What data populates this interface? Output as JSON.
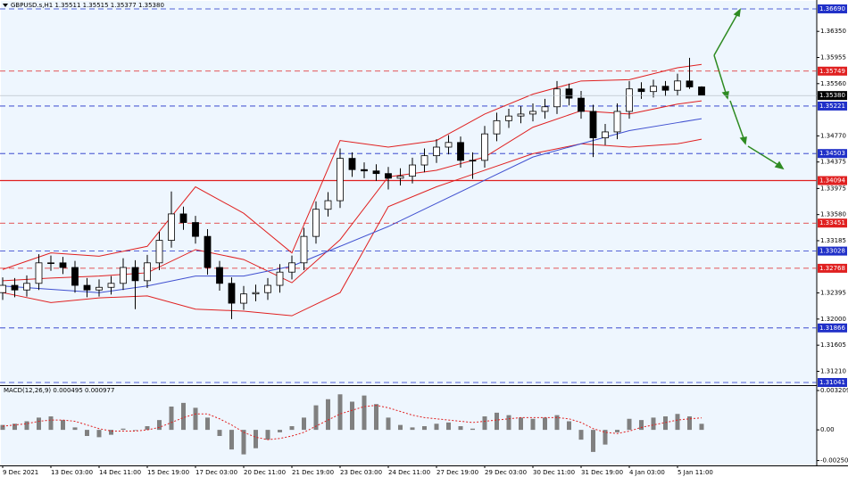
{
  "chart_data": {
    "type": "candlestick",
    "title": "GBPUSD.s,H1  1.35511 1.35515 1.35377 1.35380",
    "categories": [
      "9 Dec 2021",
      null,
      null,
      null,
      "13 Dec 03:00",
      null,
      null,
      null,
      "14 Dec 11:00",
      null,
      null,
      null,
      "15 Dec 19:00",
      null,
      null,
      null,
      "17 Dec 03:00",
      null,
      null,
      null,
      "20 Dec 11:00",
      null,
      null,
      null,
      "21 Dec 19:00",
      null,
      null,
      null,
      "23 Dec 03:00",
      null,
      null,
      null,
      "24 Dec 11:00",
      null,
      null,
      null,
      "27 Dec 19:00",
      null,
      null,
      null,
      "29 Dec 03:00",
      null,
      null,
      null,
      "30 Dec 11:00",
      null,
      null,
      null,
      "31 Dec 19:00",
      null,
      null,
      null,
      "4 Jan 03:00",
      null,
      null,
      null,
      "5 Jan 11:00",
      null,
      null
    ],
    "open": [
      1.324,
      1.3251,
      1.3244,
      1.3254,
      1.3285,
      1.3285,
      1.3278,
      1.3251,
      1.3244,
      1.3248,
      1.3254,
      1.3278,
      1.3258,
      1.3285,
      1.3319,
      1.3359,
      1.3346,
      1.3325,
      1.3278,
      1.3254,
      1.3224,
      1.3238,
      1.324,
      1.3251,
      1.3271,
      1.3285,
      1.3325,
      1.3366,
      1.3379,
      1.3443,
      1.3426,
      1.3424,
      1.342,
      1.3413,
      1.3416,
      1.3433,
      1.3447,
      1.346,
      1.3467,
      1.344,
      1.344,
      1.348,
      1.35,
      1.3507,
      1.351,
      1.3514,
      1.3521,
      1.3548,
      1.3534,
      1.3514,
      1.3474,
      1.3483,
      1.3514,
      1.3548,
      1.3544,
      1.3552,
      1.3546,
      1.356,
      1.3551
    ],
    "high": [
      1.3263,
      1.3262,
      1.3266,
      1.3298,
      1.3296,
      1.3294,
      1.3288,
      1.3262,
      1.326,
      1.3265,
      1.3292,
      1.3289,
      1.3297,
      1.3332,
      1.3393,
      1.337,
      1.3356,
      1.3336,
      1.3288,
      1.3263,
      1.325,
      1.3252,
      1.3262,
      1.3283,
      1.3296,
      1.3338,
      1.3378,
      1.3392,
      1.3458,
      1.3452,
      1.3437,
      1.3434,
      1.343,
      1.3428,
      1.3444,
      1.3458,
      1.3472,
      1.3478,
      1.3476,
      1.3452,
      1.3492,
      1.3512,
      1.3518,
      1.3522,
      1.3526,
      1.3533,
      1.356,
      1.3556,
      1.3545,
      1.3524,
      1.3495,
      1.3526,
      1.356,
      1.3558,
      1.3562,
      1.356,
      1.3571,
      1.3595,
      1.3552
    ],
    "low": [
      1.3229,
      1.3233,
      1.3234,
      1.3244,
      1.3273,
      1.3268,
      1.324,
      1.3233,
      1.3234,
      1.3237,
      1.3244,
      1.3215,
      1.3247,
      1.3274,
      1.3308,
      1.3335,
      1.3314,
      1.3267,
      1.3243,
      1.32,
      1.3214,
      1.3227,
      1.3229,
      1.324,
      1.326,
      1.3274,
      1.3314,
      1.3355,
      1.3368,
      1.3415,
      1.3413,
      1.3409,
      1.3396,
      1.3402,
      1.3405,
      1.3422,
      1.3436,
      1.3449,
      1.3429,
      1.3412,
      1.3429,
      1.3469,
      1.3489,
      1.3496,
      1.3499,
      1.3503,
      1.351,
      1.3523,
      1.3503,
      1.3445,
      1.3463,
      1.3472,
      1.3503,
      1.3533,
      1.3535,
      1.3537,
      1.3538,
      1.3548,
      1.3538
    ],
    "close": [
      1.3251,
      1.3244,
      1.3254,
      1.3285,
      1.3285,
      1.3278,
      1.3251,
      1.3244,
      1.3248,
      1.3254,
      1.3278,
      1.3258,
      1.3285,
      1.3319,
      1.3359,
      1.3346,
      1.3325,
      1.3278,
      1.3254,
      1.3224,
      1.3238,
      1.324,
      1.3251,
      1.3271,
      1.3285,
      1.3325,
      1.3366,
      1.3379,
      1.3443,
      1.3426,
      1.3424,
      1.342,
      1.3413,
      1.3416,
      1.3433,
      1.3447,
      1.346,
      1.3467,
      1.344,
      1.344,
      1.348,
      1.35,
      1.3507,
      1.351,
      1.3514,
      1.3521,
      1.3548,
      1.3534,
      1.3514,
      1.3474,
      1.3483,
      1.3514,
      1.3548,
      1.3544,
      1.3552,
      1.3546,
      1.356,
      1.3551,
      1.3538
    ],
    "ylim": [
      1.31014,
      1.36784
    ],
    "yticks": [
      {
        "value": 1.3635,
        "label": "1.36350"
      },
      {
        "value": 1.35955,
        "label": "1.35955"
      },
      {
        "value": 1.3556,
        "label": "1.35560"
      },
      {
        "value": 1.3477,
        "label": "1.34770"
      },
      {
        "value": 1.34375,
        "label": "1.34375"
      },
      {
        "value": 1.33975,
        "label": "1.33975"
      },
      {
        "value": 1.3358,
        "label": "1.33580"
      },
      {
        "value": 1.33185,
        "label": "1.33185"
      },
      {
        "value": 1.32395,
        "label": "1.32395"
      },
      {
        "value": 1.32,
        "label": "1.32000"
      },
      {
        "value": 1.31605,
        "label": "1.31605"
      },
      {
        "value": 1.3121,
        "label": "1.31210"
      }
    ],
    "overlay_x": [
      0,
      4,
      8,
      12,
      16,
      20,
      24,
      28,
      32,
      36,
      40,
      44,
      48,
      52,
      56,
      58
    ],
    "overlays": [
      {
        "color": "#e02020",
        "values": [
          1.3275,
          1.33,
          1.3295,
          1.331,
          1.34,
          1.336,
          1.33,
          1.347,
          1.346,
          1.347,
          1.351,
          1.354,
          1.356,
          1.3562,
          1.358,
          1.3585
        ]
      },
      {
        "color": "#e02020",
        "values": [
          1.3258,
          1.3262,
          1.3265,
          1.327,
          1.3305,
          1.329,
          1.3255,
          1.332,
          1.3415,
          1.3425,
          1.3445,
          1.349,
          1.3515,
          1.351,
          1.3525,
          1.353
        ]
      },
      {
        "color": "#e02020",
        "values": [
          1.324,
          1.3225,
          1.3232,
          1.3235,
          1.3215,
          1.3212,
          1.3205,
          1.324,
          1.337,
          1.34,
          1.3425,
          1.345,
          1.3465,
          1.346,
          1.3465,
          1.3472
        ]
      },
      {
        "color": "#4050d0",
        "values": [
          1.325,
          1.3245,
          1.324,
          1.325,
          1.3265,
          1.3265,
          1.328,
          1.331,
          1.334,
          1.3375,
          1.341,
          1.3445,
          1.3465,
          1.3485,
          1.3497,
          1.3503
        ]
      }
    ],
    "levels": [
      {
        "value": 1.3669,
        "label": "1.36690",
        "color": "#2030c8",
        "dash": true
      },
      {
        "value": 1.35749,
        "label": "1.35749",
        "color": "#e02020",
        "dash": true
      },
      {
        "value": 1.35221,
        "label": "1.35221",
        "color": "#2030c8",
        "dash": true
      },
      {
        "value": 1.34503,
        "label": "1.34503",
        "color": "#2030c8",
        "dash": true
      },
      {
        "value": 1.34094,
        "label": "1.34094",
        "color": "#e02020",
        "dash": false
      },
      {
        "value": 1.33451,
        "label": "1.33451",
        "color": "#e02020",
        "dash": true
      },
      {
        "value": 1.33028,
        "label": "1.33028",
        "color": "#2030c8",
        "dash": true
      },
      {
        "value": 1.32768,
        "label": "1.32768",
        "color": "#e02020",
        "dash": true
      },
      {
        "value": 1.31866,
        "label": "1.31866",
        "color": "#2030c8",
        "dash": true
      },
      {
        "value": 1.31041,
        "label": "1.31041",
        "color": "#2030c8",
        "dash": true
      }
    ],
    "last_price": {
      "value": 1.3538,
      "label": "1.35380"
    },
    "macd": {
      "title": "MACD(12,26,9) 0.000495 0.000977",
      "ylim": [
        -0.0029,
        0.0035
      ],
      "yticks": [
        0.003209,
        {
          "value": 0,
          "label": "0.00"
        },
        -0.002505
      ],
      "histogram": [
        0.0004,
        0.0005,
        0.0007,
        0.001,
        0.0011,
        0.0008,
        0.0002,
        -0.0005,
        -0.0006,
        -0.0004,
        0.0001,
        0,
        0.0003,
        0.0008,
        0.0019,
        0.0022,
        0.0018,
        0.001,
        -0.0005,
        -0.0016,
        -0.002,
        -0.0015,
        -0.0008,
        -0.0002,
        0.0003,
        0.001,
        0.002,
        0.0025,
        0.0029,
        0.0023,
        0.0028,
        0.0021,
        0.001,
        0.0004,
        0.0002,
        0.0003,
        0.0005,
        0.0006,
        0.0003,
        0.0001,
        0.0011,
        0.0014,
        0.0012,
        0.001,
        0.0009,
        0.001,
        0.0012,
        0.0007,
        -0.0008,
        -0.0018,
        -0.0012,
        -0.0002,
        0.0009,
        0.0008,
        0.001,
        0.0011,
        0.0013,
        0.0011,
        0.000495
      ],
      "histogram_color": "#808080",
      "signal": [
        0.0003,
        0.0004,
        0.0005,
        0.0007,
        0.0008,
        0.0008,
        0.0007,
        0.0004,
        0.0001,
        -0.0001,
        -0.0001,
        -0.0001,
        0,
        0.0002,
        0.0006,
        0.001,
        0.0013,
        0.0013,
        0.0009,
        0.0004,
        -0.0002,
        -0.0006,
        -0.0008,
        -0.0007,
        -0.0005,
        -0.0002,
        0.0003,
        0.0008,
        0.0013,
        0.0016,
        0.0019,
        0.002,
        0.0018,
        0.0015,
        0.0012,
        0.001,
        0.0009,
        0.0008,
        0.0007,
        0.0006,
        0.0007,
        0.0008,
        0.0009,
        0.001,
        0.001,
        0.001,
        0.001,
        0.0009,
        0.0006,
        0.0001,
        -0.0002,
        -0.0003,
        -0.0001,
        0.0002,
        0.0004,
        0.0006,
        0.0008,
        0.0009,
        0.000977
      ],
      "signal_color": "#e02020"
    }
  }
}
